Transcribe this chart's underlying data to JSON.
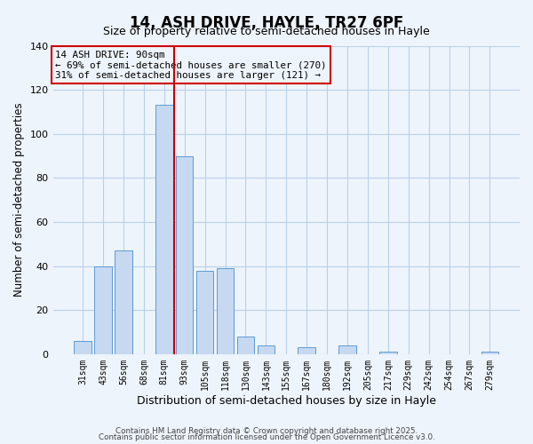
{
  "title": "14, ASH DRIVE, HAYLE, TR27 6PF",
  "subtitle": "Size of property relative to semi-detached houses in Hayle",
  "xlabel": "Distribution of semi-detached houses by size in Hayle",
  "ylabel": "Number of semi-detached properties",
  "bar_color": "#c6d9f1",
  "bar_edge_color": "#5b9bd5",
  "categories": [
    "31sqm",
    "43sqm",
    "56sqm",
    "68sqm",
    "81sqm",
    "93sqm",
    "105sqm",
    "118sqm",
    "130sqm",
    "143sqm",
    "155sqm",
    "167sqm",
    "180sqm",
    "192sqm",
    "205sqm",
    "217sqm",
    "229sqm",
    "242sqm",
    "254sqm",
    "267sqm",
    "279sqm"
  ],
  "values": [
    6,
    40,
    47,
    0,
    113,
    90,
    38,
    39,
    8,
    4,
    0,
    3,
    0,
    4,
    0,
    1,
    0,
    0,
    0,
    0,
    1
  ],
  "ylim": [
    0,
    140
  ],
  "yticks": [
    0,
    20,
    40,
    60,
    80,
    100,
    120,
    140
  ],
  "vline_color": "#cc0000",
  "annotation_title": "14 ASH DRIVE: 90sqm",
  "annotation_line1": "← 69% of semi-detached houses are smaller (270)",
  "annotation_line2": "31% of semi-detached houses are larger (121) →",
  "footer1": "Contains HM Land Registry data © Crown copyright and database right 2025.",
  "footer2": "Contains public sector information licensed under the Open Government Licence v3.0.",
  "background_color": "#eef4fb",
  "grid_color": "#b8d0ea"
}
